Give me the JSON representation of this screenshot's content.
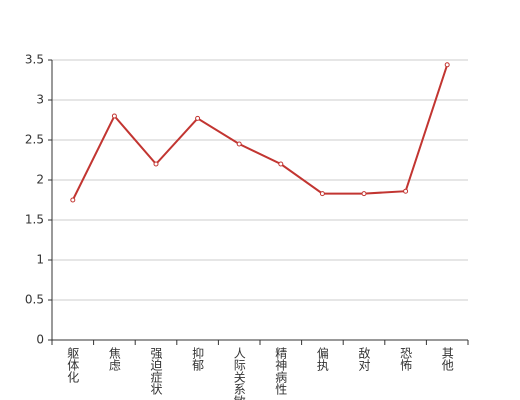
{
  "chart_data": {
    "type": "line",
    "categories": [
      "躯体化",
      "焦虑",
      "强迫症状",
      "抑郁",
      "人际关系敏感",
      "精神病性",
      "偏执",
      "敌对",
      "恐怖",
      "其他"
    ],
    "values": [
      1.75,
      2.8,
      2.2,
      2.77,
      2.45,
      2.2,
      1.83,
      1.83,
      1.86,
      3.44
    ],
    "color": "#c23531",
    "ylim": [
      0,
      3.5
    ],
    "yticks": [
      0,
      0.5,
      1,
      1.5,
      2,
      2.5,
      3,
      3.5
    ],
    "grid": true
  }
}
